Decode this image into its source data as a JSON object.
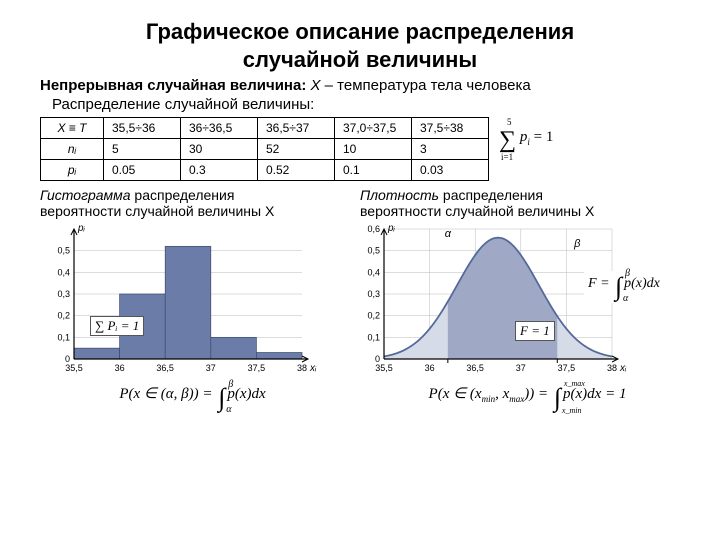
{
  "title_line1": "Графическое описание распределения",
  "title_line2": "случайной величины",
  "subtitle_bold": "Непрерывная случайная величина:",
  "subtitle_var": "X",
  "subtitle_rest": " – температура тела человека",
  "subtitle2": "Распределение случайной величины:",
  "table": {
    "row_labels": [
      "X ≡ T",
      "nᵢ",
      "pᵢ"
    ],
    "columns": [
      "35,5÷36",
      "36÷36,5",
      "36,5÷37",
      "37,0÷37,5",
      "37,5÷38"
    ],
    "n_values": [
      "5",
      "30",
      "52",
      "10",
      "3"
    ],
    "p_values": [
      "0.05",
      "0.3",
      "0.52",
      "0.1",
      "0.03"
    ]
  },
  "sum_eq": "∑ pᵢ = 1",
  "sum_upper": "5",
  "sum_lower": "i=1",
  "label_left_em": "Гистограмма",
  "label_left_rest1": " распределения",
  "label_left_line2": "вероятности случайной величины X",
  "label_right_em": "Плотность",
  "label_right_rest1": " распределения",
  "label_right_line2": "вероятности случайной величины X",
  "histogram": {
    "bg": "#ffffff",
    "axis_color": "#000000",
    "grid_color": "#bbbbbb",
    "bar_color": "#6c7ca8",
    "y_ticks": [
      "0",
      "0,1",
      "0,2",
      "0,3",
      "0,4",
      "0,5"
    ],
    "y_label": "pᵢ",
    "x_ticks": [
      "35,5",
      "36",
      "36,5",
      "37",
      "37,5",
      "38"
    ],
    "x_label": "xᵢ",
    "values": [
      0.05,
      0.3,
      0.52,
      0.1,
      0.03
    ],
    "ylim": [
      0,
      0.6
    ],
    "overlay": "∑ Pᵢ = 1"
  },
  "density": {
    "bg": "#ffffff",
    "axis_color": "#000000",
    "grid_color": "#bbbbbb",
    "curve_color": "#556a9a",
    "fill_color": "#b0b9d0",
    "tail_fill": "#d6dbe8",
    "mid_fill": "#9fa9c6",
    "y_ticks": [
      "0",
      "0,1",
      "0,2",
      "0,3",
      "0,4",
      "0,5",
      "0,6"
    ],
    "y_label": "pᵢ",
    "x_ticks": [
      "35,5",
      "36",
      "36,5",
      "37",
      "37,5",
      "38"
    ],
    "x_label": "xᵢ",
    "alpha_label": "α",
    "beta_label": "β",
    "overlay_F": "F = 1",
    "overlay_int": "F = ∫ p(x)dx"
  },
  "formula_left": "P(x ∈ (α, β)) = ∫ p(x)dx",
  "formula_left_lo": "α",
  "formula_left_hi": "β",
  "formula_right_a": "P(x ∈ (x_min, x_max)) = ",
  "formula_right_lo": "x_min",
  "formula_right_hi": "x_max",
  "formula_right_b": " p(x)dx = 1"
}
